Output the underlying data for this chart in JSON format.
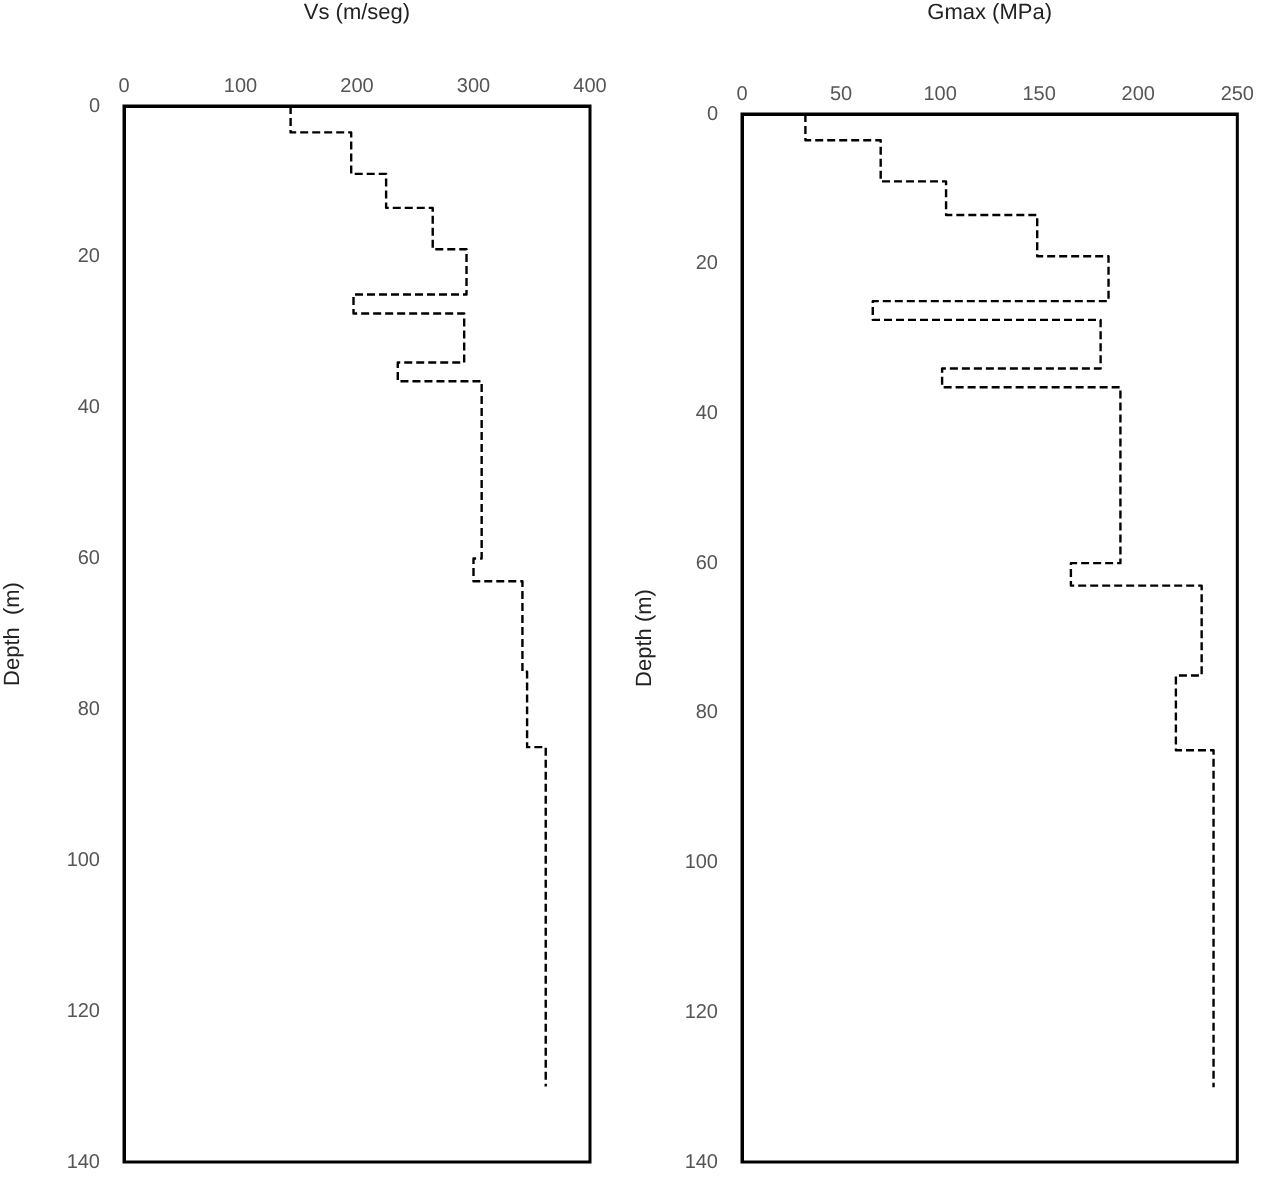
{
  "chart_data": [
    {
      "type": "line",
      "xlabel": "Vs (m/seg)",
      "ylabel": "Depth  (m)",
      "xlim": [
        0,
        400
      ],
      "xticks": [
        0,
        100,
        200,
        300,
        400
      ],
      "ylim": [
        140,
        0
      ],
      "yticks": [
        0,
        20,
        40,
        60,
        80,
        100,
        120,
        140
      ],
      "grid": false,
      "legend": false,
      "marker": "none",
      "line_style": "dashed",
      "series": [
        {
          "color": "#000000",
          "x": [
            143,
            143,
            195,
            195,
            225,
            225,
            265,
            265,
            294,
            294,
            197,
            197,
            292,
            292,
            235,
            235,
            307,
            307,
            300,
            300,
            342,
            342,
            346,
            346,
            362,
            362
          ],
          "values": [
            0,
            3.5,
            3.5,
            9,
            9,
            13.5,
            13.5,
            19,
            19,
            25,
            25,
            27.5,
            27.5,
            34,
            34,
            36.5,
            36.5,
            60,
            60,
            63,
            63,
            75,
            75,
            85,
            85,
            130
          ]
        }
      ]
    },
    {
      "type": "line",
      "xlabel": "Gmax (MPa)",
      "ylabel": "Depth (m)",
      "xlim": [
        0,
        250
      ],
      "xticks": [
        0,
        50,
        100,
        150,
        200,
        250
      ],
      "ylim": [
        140,
        0
      ],
      "yticks": [
        0,
        20,
        40,
        60,
        80,
        100,
        120,
        140
      ],
      "grid": false,
      "legend": false,
      "marker": "none",
      "line_style": "dashed",
      "series": [
        {
          "color": "#000000",
          "x": [
            32,
            32,
            70,
            70,
            103,
            103,
            149,
            149,
            185,
            185,
            66,
            66,
            181,
            181,
            101,
            101,
            191,
            191,
            166,
            166,
            232,
            232,
            219,
            219,
            238,
            238
          ],
          "values": [
            0,
            3.5,
            3.5,
            9,
            9,
            13.5,
            13.5,
            19,
            19,
            25,
            25,
            27.5,
            27.5,
            34,
            34,
            36.5,
            36.5,
            60,
            60,
            63,
            63,
            75,
            75,
            85,
            85,
            130
          ]
        }
      ]
    }
  ]
}
